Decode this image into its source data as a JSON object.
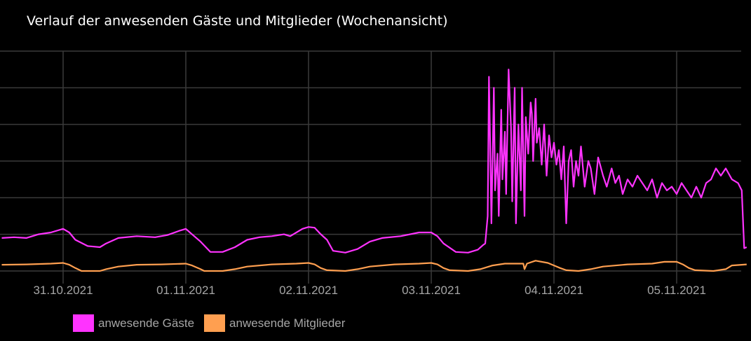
{
  "chart_data": {
    "type": "line",
    "title": "Verlauf der anwesenden Gäste und Mitglieder (Wochenansicht)",
    "xlabel": "",
    "ylabel": "",
    "x_tick_labels": [
      "31.10.2021",
      "01.11.2021",
      "02.11.2021",
      "03.11.2021",
      "04.11.2021",
      "05.11.2021"
    ],
    "x_ticks_days": [
      0,
      1,
      2,
      3,
      4,
      5
    ],
    "x_range_days": [
      -0.51,
      5.57
    ],
    "y_gridlines": 7,
    "y_axis_labels_visible": false,
    "y_unit": "relative level, 0 = bottom gridline, 6 = top gridline",
    "grid": true,
    "legend_position": "bottom-left",
    "background": "#000000",
    "series": [
      {
        "name": "anwesende Gäste",
        "color": "#ff33ff",
        "points": [
          [
            -0.5,
            0.9
          ],
          [
            -0.4,
            0.92
          ],
          [
            -0.3,
            0.9
          ],
          [
            -0.2,
            1.0
          ],
          [
            -0.1,
            1.05
          ],
          [
            0.0,
            1.15
          ],
          [
            0.05,
            1.05
          ],
          [
            0.1,
            0.85
          ],
          [
            0.2,
            0.68
          ],
          [
            0.3,
            0.65
          ],
          [
            0.35,
            0.75
          ],
          [
            0.45,
            0.9
          ],
          [
            0.6,
            0.95
          ],
          [
            0.75,
            0.92
          ],
          [
            0.85,
            0.98
          ],
          [
            0.95,
            1.1
          ],
          [
            1.0,
            1.15
          ],
          [
            1.05,
            1.0
          ],
          [
            1.12,
            0.8
          ],
          [
            1.2,
            0.52
          ],
          [
            1.3,
            0.52
          ],
          [
            1.4,
            0.65
          ],
          [
            1.5,
            0.85
          ],
          [
            1.6,
            0.92
          ],
          [
            1.7,
            0.95
          ],
          [
            1.8,
            1.0
          ],
          [
            1.85,
            0.95
          ],
          [
            1.95,
            1.15
          ],
          [
            2.0,
            1.2
          ],
          [
            2.05,
            1.18
          ],
          [
            2.1,
            1.0
          ],
          [
            2.15,
            0.85
          ],
          [
            2.2,
            0.55
          ],
          [
            2.3,
            0.5
          ],
          [
            2.4,
            0.6
          ],
          [
            2.5,
            0.8
          ],
          [
            2.6,
            0.9
          ],
          [
            2.75,
            0.95
          ],
          [
            2.9,
            1.05
          ],
          [
            3.0,
            1.05
          ],
          [
            3.05,
            0.95
          ],
          [
            3.1,
            0.75
          ],
          [
            3.2,
            0.52
          ],
          [
            3.3,
            0.5
          ],
          [
            3.38,
            0.58
          ],
          [
            3.42,
            0.7
          ],
          [
            3.44,
            0.75
          ],
          [
            3.46,
            1.5
          ],
          [
            3.47,
            5.3
          ],
          [
            3.48,
            3.5
          ],
          [
            3.49,
            1.3
          ],
          [
            3.51,
            5.0
          ],
          [
            3.52,
            2.2
          ],
          [
            3.54,
            3.2
          ],
          [
            3.55,
            1.5
          ],
          [
            3.57,
            4.4
          ],
          [
            3.58,
            2.5
          ],
          [
            3.6,
            3.8
          ],
          [
            3.61,
            2.1
          ],
          [
            3.63,
            5.5
          ],
          [
            3.65,
            3.9
          ],
          [
            3.66,
            1.9
          ],
          [
            3.68,
            5.0
          ],
          [
            3.69,
            1.3
          ],
          [
            3.71,
            4.0
          ],
          [
            3.73,
            2.2
          ],
          [
            3.74,
            5.0
          ],
          [
            3.76,
            1.5
          ],
          [
            3.77,
            4.2
          ],
          [
            3.79,
            3.2
          ],
          [
            3.81,
            4.6
          ],
          [
            3.82,
            4.3
          ],
          [
            3.83,
            3.0
          ],
          [
            3.85,
            4.7
          ],
          [
            3.86,
            3.5
          ],
          [
            3.88,
            3.9
          ],
          [
            3.9,
            2.9
          ],
          [
            3.92,
            4.0
          ],
          [
            3.94,
            2.6
          ],
          [
            3.96,
            3.7
          ],
          [
            3.98,
            3.1
          ],
          [
            4.0,
            3.5
          ],
          [
            4.02,
            2.9
          ],
          [
            4.04,
            3.3
          ],
          [
            4.06,
            2.5
          ],
          [
            4.08,
            3.4
          ],
          [
            4.1,
            1.3
          ],
          [
            4.12,
            3.0
          ],
          [
            4.14,
            3.3
          ],
          [
            4.16,
            2.3
          ],
          [
            4.18,
            3.0
          ],
          [
            4.2,
            2.6
          ],
          [
            4.22,
            3.4
          ],
          [
            4.25,
            2.3
          ],
          [
            4.28,
            3.0
          ],
          [
            4.3,
            2.8
          ],
          [
            4.33,
            2.1
          ],
          [
            4.36,
            3.1
          ],
          [
            4.4,
            2.6
          ],
          [
            4.43,
            2.3
          ],
          [
            4.47,
            2.8
          ],
          [
            4.5,
            2.4
          ],
          [
            4.53,
            2.6
          ],
          [
            4.56,
            2.1
          ],
          [
            4.6,
            2.5
          ],
          [
            4.64,
            2.3
          ],
          [
            4.68,
            2.6
          ],
          [
            4.72,
            2.4
          ],
          [
            4.76,
            2.2
          ],
          [
            4.8,
            2.5
          ],
          [
            4.84,
            2.0
          ],
          [
            4.88,
            2.4
          ],
          [
            4.92,
            2.2
          ],
          [
            4.96,
            2.3
          ],
          [
            5.0,
            2.1
          ],
          [
            5.04,
            2.4
          ],
          [
            5.08,
            2.2
          ],
          [
            5.12,
            2.0
          ],
          [
            5.16,
            2.3
          ],
          [
            5.2,
            2.0
          ],
          [
            5.24,
            2.4
          ],
          [
            5.28,
            2.5
          ],
          [
            5.32,
            2.8
          ],
          [
            5.36,
            2.6
          ],
          [
            5.4,
            2.8
          ],
          [
            5.45,
            2.5
          ],
          [
            5.5,
            2.4
          ],
          [
            5.53,
            2.2
          ],
          [
            5.55,
            0.62
          ],
          [
            5.57,
            0.65
          ]
        ]
      },
      {
        "name": "anwesende Mitglieder",
        "color": "#ff9f50",
        "points": [
          [
            -0.5,
            0.17
          ],
          [
            -0.3,
            0.18
          ],
          [
            -0.1,
            0.2
          ],
          [
            0.0,
            0.22
          ],
          [
            0.05,
            0.17
          ],
          [
            0.1,
            0.08
          ],
          [
            0.15,
            0.0
          ],
          [
            0.3,
            0.0
          ],
          [
            0.35,
            0.05
          ],
          [
            0.45,
            0.12
          ],
          [
            0.6,
            0.17
          ],
          [
            0.8,
            0.18
          ],
          [
            1.0,
            0.2
          ],
          [
            1.05,
            0.15
          ],
          [
            1.12,
            0.05
          ],
          [
            1.15,
            0.0
          ],
          [
            1.3,
            0.0
          ],
          [
            1.4,
            0.05
          ],
          [
            1.5,
            0.12
          ],
          [
            1.7,
            0.18
          ],
          [
            1.9,
            0.2
          ],
          [
            2.0,
            0.22
          ],
          [
            2.05,
            0.18
          ],
          [
            2.1,
            0.08
          ],
          [
            2.15,
            0.02
          ],
          [
            2.3,
            0.0
          ],
          [
            2.4,
            0.05
          ],
          [
            2.5,
            0.12
          ],
          [
            2.7,
            0.18
          ],
          [
            2.9,
            0.2
          ],
          [
            3.0,
            0.22
          ],
          [
            3.05,
            0.18
          ],
          [
            3.1,
            0.08
          ],
          [
            3.15,
            0.02
          ],
          [
            3.3,
            0.0
          ],
          [
            3.4,
            0.05
          ],
          [
            3.5,
            0.15
          ],
          [
            3.6,
            0.2
          ],
          [
            3.75,
            0.2
          ],
          [
            3.76,
            0.05
          ],
          [
            3.78,
            0.2
          ],
          [
            3.85,
            0.28
          ],
          [
            3.95,
            0.22
          ],
          [
            4.0,
            0.15
          ],
          [
            4.05,
            0.08
          ],
          [
            4.1,
            0.02
          ],
          [
            4.2,
            0.0
          ],
          [
            4.3,
            0.05
          ],
          [
            4.4,
            0.12
          ],
          [
            4.6,
            0.18
          ],
          [
            4.8,
            0.2
          ],
          [
            4.9,
            0.25
          ],
          [
            5.0,
            0.25
          ],
          [
            5.05,
            0.18
          ],
          [
            5.1,
            0.08
          ],
          [
            5.15,
            0.02
          ],
          [
            5.3,
            0.0
          ],
          [
            5.4,
            0.05
          ],
          [
            5.45,
            0.15
          ],
          [
            5.57,
            0.18
          ]
        ]
      }
    ]
  }
}
